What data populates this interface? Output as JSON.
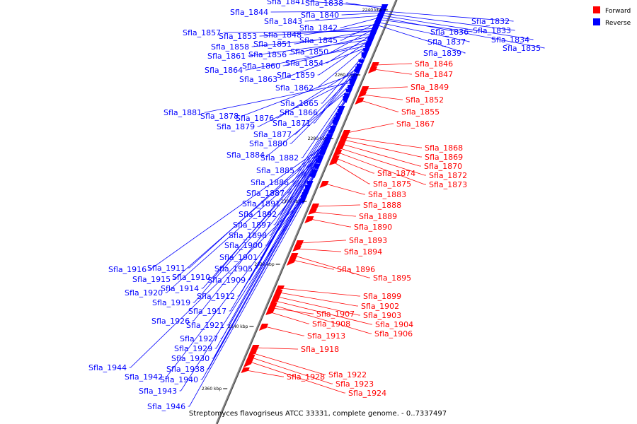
{
  "caption": "Streptomyces flavogriseus ATCC 33331, complete genome. - 0..7337497",
  "legend": [
    {
      "label": "Forward",
      "color": "#ff0000"
    },
    {
      "label": "Reverse",
      "color": "#0000ff"
    }
  ],
  "colors": {
    "forward": "#ff0000",
    "reverse": "#0000ff",
    "backbone": "#888888"
  },
  "ticks": [
    "2240 kbp",
    "2260 kbp",
    "2280 kbp",
    "2300 kbp",
    "2320 kbp",
    "2340 kbp",
    "2360 kbp"
  ],
  "genes": {
    "reverse": [
      "Sfla_1832",
      "Sfla_1833",
      "Sfla_1834",
      "Sfla_1835",
      "Sfla_1836",
      "Sfla_1837",
      "Sfla_1838",
      "Sfla_1839",
      "Sfla_1840",
      "Sfla_1841",
      "Sfla_1842",
      "Sfla_1843",
      "Sfla_1844",
      "Sfla_1845",
      "Sfla_1848",
      "Sfla_1850",
      "Sfla_1851",
      "Sfla_1853",
      "Sfla_1854",
      "Sfla_1856",
      "Sfla_1857",
      "Sfla_1858",
      "Sfla_1859",
      "Sfla_1860",
      "Sfla_1861",
      "Sfla_1862",
      "Sfla_1863",
      "Sfla_1864",
      "Sfla_1865",
      "Sfla_1866",
      "Sfla_1871",
      "Sfla_1876",
      "Sfla_1877",
      "Sfla_1878",
      "Sfla_1879",
      "Sfla_1880",
      "Sfla_1881",
      "Sfla_1882",
      "Sfla_1884",
      "Sfla_1885",
      "Sfla_1886",
      "Sfla_1887",
      "Sfla_1891",
      "Sfla_1892",
      "Sfla_1897",
      "Sfla_1898",
      "Sfla_1900",
      "Sfla_1901",
      "Sfla_1905",
      "Sfla_1909",
      "Sfla_1910",
      "Sfla_1911",
      "Sfla_1912",
      "Sfla_1914",
      "Sfla_1915",
      "Sfla_1916",
      "Sfla_1917",
      "Sfla_1919",
      "Sfla_1920",
      "Sfla_1921",
      "Sfla_1926",
      "Sfla_1927",
      "Sfla_1929",
      "Sfla_1930",
      "Sfla_1938",
      "Sfla_1940",
      "Sfla_1942",
      "Sfla_1943",
      "Sfla_1944",
      "Sfla_1946"
    ],
    "forward": [
      "Sfla_1846",
      "Sfla_1847",
      "Sfla_1849",
      "Sfla_1852",
      "Sfla_1855",
      "Sfla_1867",
      "Sfla_1868",
      "Sfla_1869",
      "Sfla_1870",
      "Sfla_1872",
      "Sfla_1873",
      "Sfla_1874",
      "Sfla_1875",
      "Sfla_1883",
      "Sfla_1888",
      "Sfla_1889",
      "Sfla_1890",
      "Sfla_1893",
      "Sfla_1894",
      "Sfla_1895",
      "Sfla_1896",
      "Sfla_1899",
      "Sfla_1902",
      "Sfla_1903",
      "Sfla_1904",
      "Sfla_1906",
      "Sfla_1907",
      "Sfla_1908",
      "Sfla_1913",
      "Sfla_1918",
      "Sfla_1922",
      "Sfla_1923",
      "Sfla_1924",
      "Sfla_1928"
    ]
  }
}
